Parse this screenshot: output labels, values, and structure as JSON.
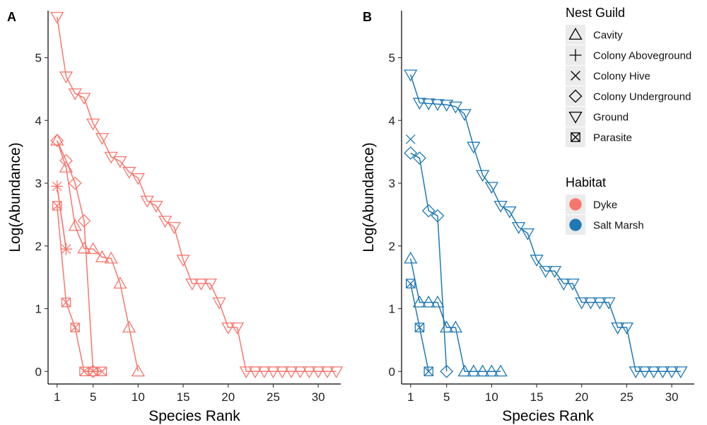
{
  "colors": {
    "Dyke": "#F8766D",
    "Salt Marsh": "#1F78B4",
    "legend_key_bg": "#EBEBEB",
    "axis": "#000000"
  },
  "legend": {
    "nest_title": "Nest Guild",
    "nest_items": [
      {
        "label": "Cavity",
        "shape": "triangle-up-icon"
      },
      {
        "label": "Colony Aboveground",
        "shape": "plus-icon"
      },
      {
        "label": "Colony Hive",
        "shape": "cross-icon"
      },
      {
        "label": "Colony Underground",
        "shape": "diamond-icon"
      },
      {
        "label": "Ground",
        "shape": "triangle-down-icon"
      },
      {
        "label": "Parasite",
        "shape": "square-cross-icon"
      }
    ],
    "habitat_title": "Habitat",
    "habitat_items": [
      {
        "label": "Dyke",
        "shape": "filled-circle-icon"
      },
      {
        "label": "Salt Marsh",
        "shape": "filled-circle-icon"
      }
    ]
  },
  "chart_data": [
    {
      "panel": "A",
      "type": "line",
      "habitat": "Dyke",
      "xlabel": "Species Rank",
      "ylabel": "Log(Abundance)",
      "xlim": [
        0,
        32.5
      ],
      "ylim": [
        -0.2,
        5.75
      ],
      "xticks": [
        1,
        5,
        10,
        15,
        20,
        25,
        30
      ],
      "yticks": [
        0,
        1,
        2,
        3,
        4,
        5
      ],
      "grid": false,
      "series": [
        {
          "guild": "Ground",
          "x": [
            1,
            2,
            3,
            4,
            5,
            6,
            7,
            8,
            9,
            10,
            11,
            12,
            13,
            14,
            15,
            16,
            17,
            18,
            19,
            20,
            21,
            22,
            23,
            24,
            25,
            26,
            27,
            28,
            29,
            30,
            31,
            32
          ],
          "y": [
            5.65,
            4.7,
            4.43,
            4.36,
            3.95,
            3.72,
            3.42,
            3.35,
            3.18,
            3.08,
            2.72,
            2.64,
            2.4,
            2.3,
            1.78,
            1.4,
            1.4,
            1.4,
            1.1,
            0.7,
            0.7,
            0,
            0,
            0,
            0,
            0,
            0,
            0,
            0,
            0,
            0,
            0
          ]
        },
        {
          "guild": "Cavity",
          "x": [
            1,
            2,
            3,
            4,
            5,
            6,
            7,
            8,
            9,
            10
          ],
          "y": [
            3.68,
            3.25,
            2.32,
            1.96,
            1.95,
            1.82,
            1.8,
            1.4,
            0.7,
            0
          ]
        },
        {
          "guild": "Colony Underground",
          "x": [
            1,
            2,
            3,
            4,
            5
          ],
          "y": [
            3.68,
            3.36,
            3.0,
            2.4,
            0
          ]
        },
        {
          "guild": "Colony Hive",
          "x": [
            1,
            2
          ],
          "y": [
            2.95,
            1.95
          ]
        },
        {
          "guild": "Colony Aboveground",
          "x": [
            1,
            2
          ],
          "y": [
            2.95,
            1.95
          ]
        },
        {
          "guild": "Parasite",
          "x": [
            1,
            2,
            3,
            4,
            5,
            6
          ],
          "y": [
            2.64,
            1.1,
            0.7,
            0,
            0,
            0
          ]
        }
      ]
    },
    {
      "panel": "B",
      "type": "line",
      "habitat": "Salt Marsh",
      "xlabel": "Species Rank",
      "ylabel": "Log(Abundance)",
      "xlim": [
        0,
        32.5
      ],
      "ylim": [
        -0.2,
        5.75
      ],
      "xticks": [
        1,
        5,
        10,
        15,
        20,
        25,
        30
      ],
      "yticks": [
        0,
        1,
        2,
        3,
        4,
        5
      ],
      "grid": false,
      "series": [
        {
          "guild": "Ground",
          "x": [
            1,
            2,
            3,
            4,
            5,
            6,
            7,
            8,
            9,
            10,
            11,
            12,
            13,
            14,
            15,
            16,
            17,
            18,
            19,
            20,
            21,
            22,
            23,
            24,
            25,
            26,
            27,
            28,
            29,
            30,
            31
          ],
          "y": [
            4.73,
            4.28,
            4.27,
            4.26,
            4.25,
            4.22,
            4.1,
            3.58,
            3.13,
            2.94,
            2.64,
            2.55,
            2.3,
            2.2,
            1.78,
            1.6,
            1.6,
            1.4,
            1.4,
            1.1,
            1.1,
            1.1,
            1.1,
            0.7,
            0.7,
            0,
            0,
            0,
            0,
            0,
            0
          ]
        },
        {
          "guild": "Colony Hive",
          "x": [
            1
          ],
          "y": [
            3.7
          ]
        },
        {
          "guild": "Colony Underground",
          "x": [
            1,
            2,
            3,
            4,
            5
          ],
          "y": [
            3.48,
            3.4,
            2.56,
            2.48,
            0
          ]
        },
        {
          "guild": "Cavity",
          "x": [
            1,
            2,
            3,
            4,
            5,
            6,
            7,
            8,
            9,
            10,
            11
          ],
          "y": [
            1.8,
            1.1,
            1.1,
            1.1,
            0.7,
            0.7,
            0,
            0,
            0,
            0,
            0
          ]
        },
        {
          "guild": "Parasite",
          "x": [
            1,
            2,
            3
          ],
          "y": [
            1.4,
            0.7,
            0
          ]
        }
      ]
    }
  ]
}
